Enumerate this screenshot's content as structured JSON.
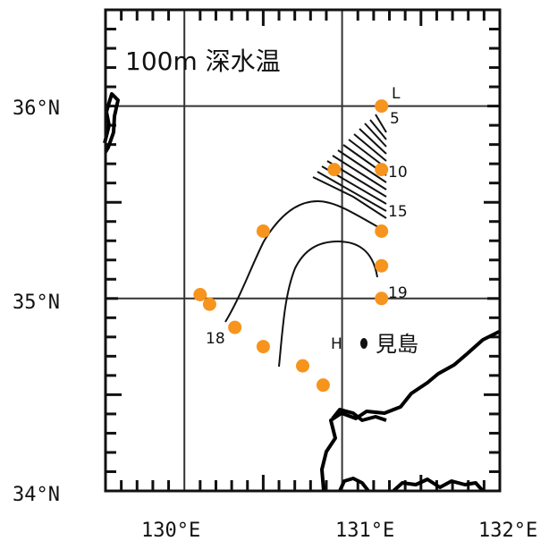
{
  "map": {
    "title": "100m 深水温",
    "lat_labels": [
      "36°N",
      "35°N",
      "34°N"
    ],
    "lon_labels": [
      "130°E",
      "131°E",
      "132°E"
    ],
    "contour_labels": [
      "L",
      "5",
      "10",
      "15",
      "19",
      "18"
    ],
    "island": {
      "marker": "H",
      "name": "見島"
    },
    "station_color": "#f7941d",
    "stations": [
      [
        131.25,
        36.0
      ],
      [
        131.25,
        35.67
      ],
      [
        130.95,
        35.67
      ],
      [
        130.5,
        35.35
      ],
      [
        131.25,
        35.35
      ],
      [
        131.25,
        35.17
      ],
      [
        131.25,
        35.0
      ],
      [
        130.1,
        35.02
      ],
      [
        130.16,
        34.97
      ],
      [
        130.32,
        34.85
      ],
      [
        130.5,
        34.75
      ],
      [
        130.75,
        34.65
      ],
      [
        130.88,
        34.55
      ]
    ]
  }
}
